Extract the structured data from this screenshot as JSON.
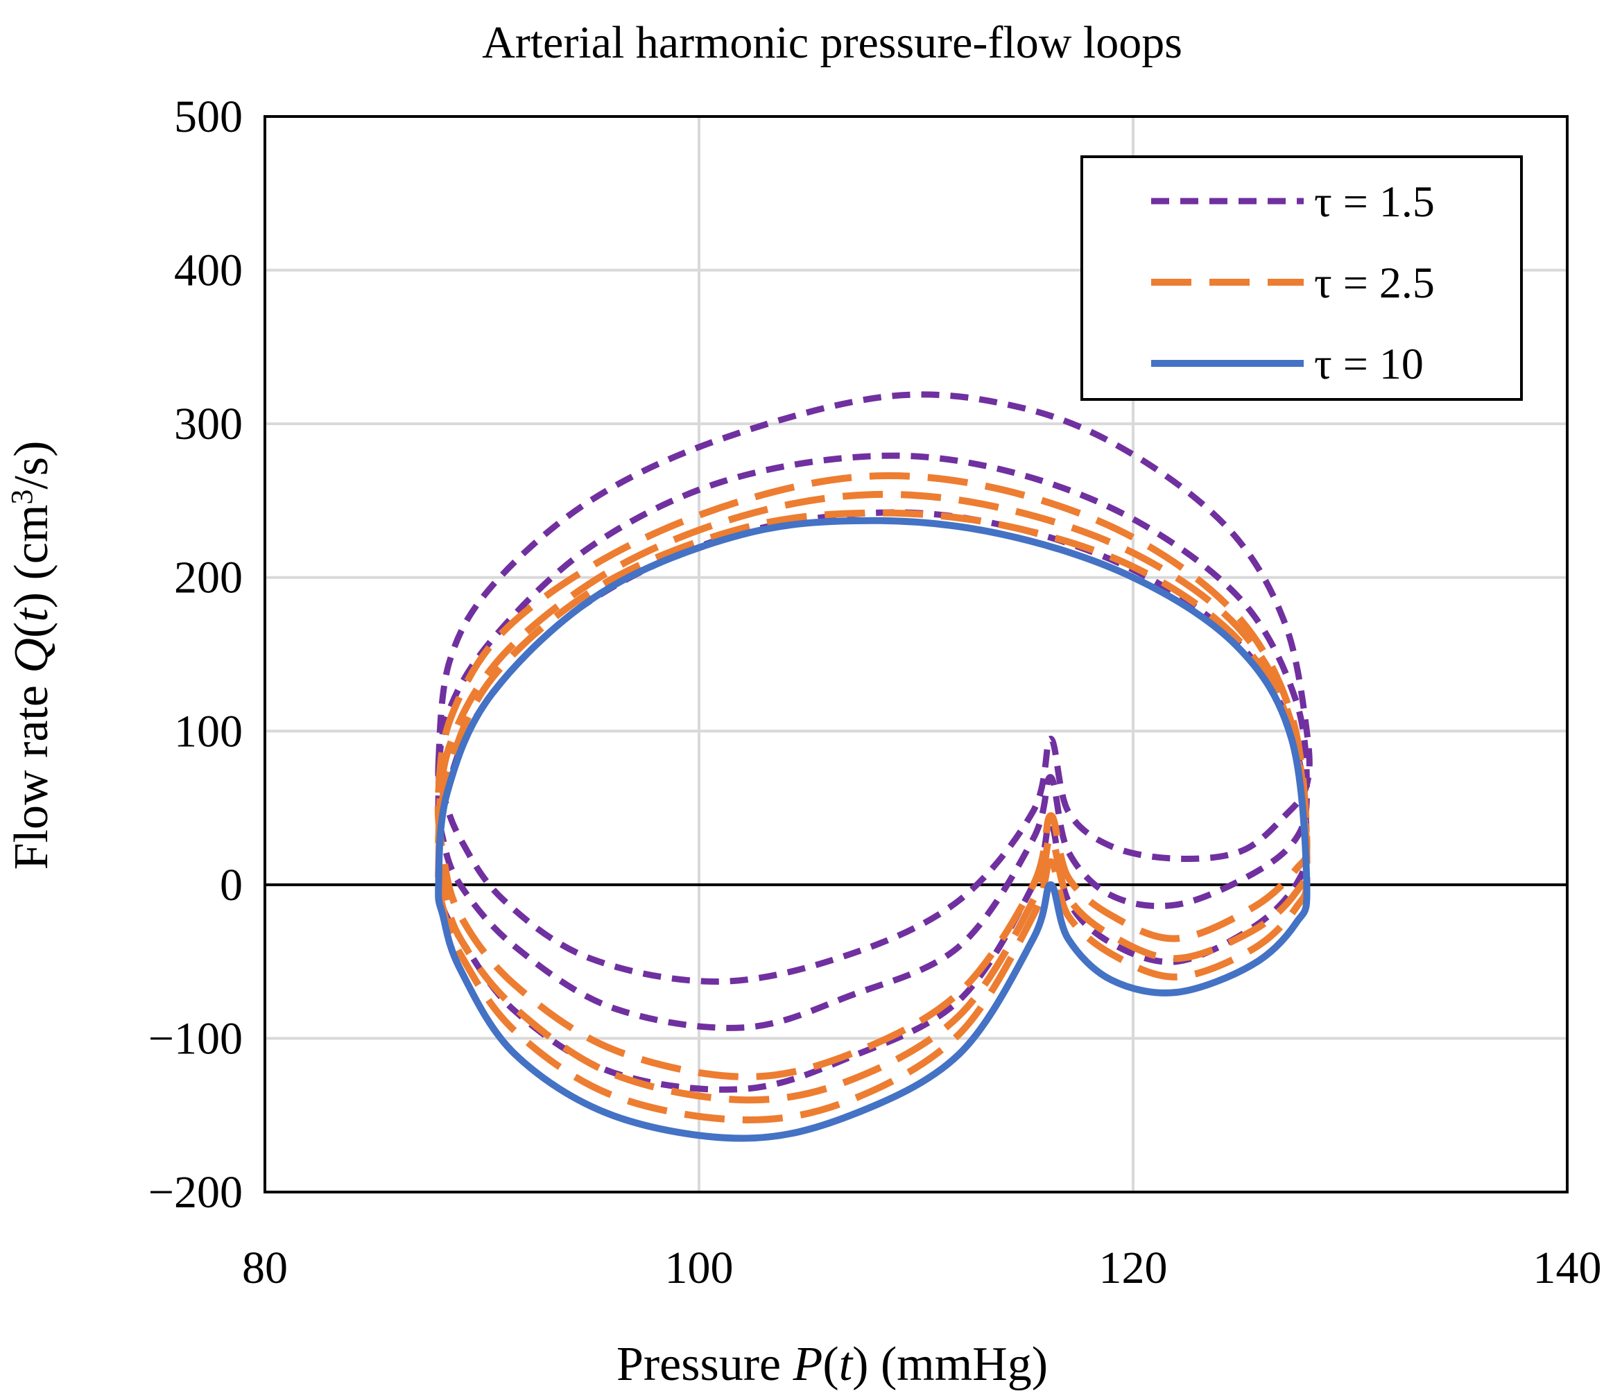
{
  "chart_data": {
    "type": "line",
    "title": "Arterial harmonic pressure-flow loops",
    "xlabel": "Pressure P(t) (mmHg)",
    "ylabel": "Flow rate Q(t) (cm³/s)",
    "xlabel_parts": {
      "pre": "Pressure ",
      "var": "P",
      "open": "(",
      "arg": "t",
      "post": ") (mmHg)"
    },
    "ylabel_parts": {
      "pre": "Flow rate ",
      "var": "Q",
      "open": "(",
      "arg": "t",
      "post": ") (cm",
      "sup": "3",
      "tail": "/s)"
    },
    "xlim": [
      80,
      140
    ],
    "ylim": [
      -200,
      500
    ],
    "xticks": [
      80,
      100,
      120,
      140
    ],
    "yticks": [
      500,
      400,
      300,
      200,
      100,
      0,
      -100,
      -200
    ],
    "ytick_labels": [
      "500",
      "400",
      "300",
      "200",
      "100",
      "0",
      "−100",
      "−200"
    ],
    "grid": true,
    "legend_position": "top-right",
    "legend": [
      "τ = 1.5",
      "τ = 2.5",
      "τ = 10"
    ],
    "series": [
      {
        "name": "τ = 1.5",
        "color": "#7030a0",
        "style": "short-dash",
        "loops": [
          [
            [
              88,
              80
            ],
            [
              88.5,
              145
            ],
            [
              90.5,
              195
            ],
            [
              95,
              250
            ],
            [
              101,
              290
            ],
            [
              108.8,
              318
            ],
            [
              115,
              310
            ],
            [
              120,
              280
            ],
            [
              124.5,
              230
            ],
            [
              127,
              170
            ],
            [
              128,
              100
            ],
            [
              128,
              65
            ],
            [
              127,
              45
            ],
            [
              125,
              22
            ],
            [
              122,
              17
            ],
            [
              119,
              25
            ],
            [
              117,
              48
            ],
            [
              116.2,
              95
            ],
            [
              115.4,
              48
            ],
            [
              112,
              -10
            ],
            [
              107,
              -45
            ],
            [
              101,
              -63
            ],
            [
              95,
              -48
            ],
            [
              91,
              -10
            ],
            [
              89,
              30
            ],
            [
              88.2,
              60
            ],
            [
              88,
              80
            ]
          ],
          [
            [
              88,
              60
            ],
            [
              88.4,
              110
            ],
            [
              90.5,
              160
            ],
            [
              95,
              220
            ],
            [
              101,
              262
            ],
            [
              108,
              279
            ],
            [
              114,
              270
            ],
            [
              120,
              238
            ],
            [
              125,
              185
            ],
            [
              127.5,
              120
            ],
            [
              128,
              60
            ],
            [
              127.5,
              30
            ],
            [
              125.5,
              7
            ],
            [
              122,
              -13
            ],
            [
              119,
              -7
            ],
            [
              117,
              22
            ],
            [
              116.2,
              70
            ],
            [
              115.4,
              30
            ],
            [
              112,
              -40
            ],
            [
              107,
              -72
            ],
            [
              102,
              -93
            ],
            [
              96,
              -80
            ],
            [
              91.5,
              -40
            ],
            [
              89,
              0
            ],
            [
              88.2,
              30
            ],
            [
              88,
              60
            ]
          ],
          [
            [
              88,
              0
            ],
            [
              88.3,
              55
            ],
            [
              90,
              115
            ],
            [
              94.5,
              180
            ],
            [
              101,
              225
            ],
            [
              108,
              242
            ],
            [
              114,
              234
            ],
            [
              120,
              205
            ],
            [
              124.8,
              158
            ],
            [
              127.3,
              100
            ],
            [
              128,
              30
            ],
            [
              127.5,
              0
            ],
            [
              125.5,
              -28
            ],
            [
              122,
              -50
            ],
            [
              119,
              -38
            ],
            [
              117,
              -10
            ],
            [
              116.2,
              40
            ],
            [
              115.4,
              0
            ],
            [
              112,
              -75
            ],
            [
              107,
              -112
            ],
            [
              102,
              -133
            ],
            [
              96,
              -122
            ],
            [
              91.5,
              -82
            ],
            [
              89,
              -35
            ],
            [
              88.2,
              -15
            ],
            [
              88,
              0
            ]
          ]
        ]
      },
      {
        "name": "τ = 2.5",
        "color": "#ed7d31",
        "style": "long-dash",
        "loops": [
          [
            [
              88,
              60
            ],
            [
              88.6,
              110
            ],
            [
              91,
              165
            ],
            [
              96,
              215
            ],
            [
              102,
              250
            ],
            [
              108,
              266
            ],
            [
              114,
              257
            ],
            [
              120,
              226
            ],
            [
              124.8,
              175
            ],
            [
              127.3,
              110
            ],
            [
              128,
              30
            ],
            [
              127.5,
              10
            ],
            [
              125.5,
              -15
            ],
            [
              122,
              -35
            ],
            [
              119,
              -20
            ],
            [
              117,
              5
            ],
            [
              116.2,
              45
            ],
            [
              115.4,
              0
            ],
            [
              112,
              -70
            ],
            [
              107,
              -110
            ],
            [
              102,
              -125
            ],
            [
              96,
              -107
            ],
            [
              91.5,
              -65
            ],
            [
              89,
              -20
            ],
            [
              88.2,
              20
            ],
            [
              88,
              60
            ]
          ],
          [
            [
              88,
              30
            ],
            [
              88.5,
              90
            ],
            [
              91,
              150
            ],
            [
              96,
              205
            ],
            [
              102,
              240
            ],
            [
              108,
              254
            ],
            [
              114,
              245
            ],
            [
              120,
              216
            ],
            [
              124.8,
              168
            ],
            [
              127.3,
              105
            ],
            [
              128,
              20
            ],
            [
              127.5,
              -5
            ],
            [
              125.5,
              -30
            ],
            [
              122,
              -48
            ],
            [
              119,
              -33
            ],
            [
              117,
              -8
            ],
            [
              116.2,
              30
            ],
            [
              115.4,
              -10
            ],
            [
              112,
              -85
            ],
            [
              107,
              -127
            ],
            [
              102,
              -140
            ],
            [
              96,
              -123
            ],
            [
              91.5,
              -80
            ],
            [
              89,
              -35
            ],
            [
              88.2,
              0
            ],
            [
              88,
              30
            ]
          ],
          [
            [
              88,
              10
            ],
            [
              88.4,
              70
            ],
            [
              90.5,
              135
            ],
            [
              95.5,
              195
            ],
            [
              102,
              232
            ],
            [
              108,
              242
            ],
            [
              114,
              234
            ],
            [
              120,
              207
            ],
            [
              124.8,
              160
            ],
            [
              127.3,
              100
            ],
            [
              128,
              10
            ],
            [
              127.5,
              -15
            ],
            [
              125.5,
              -42
            ],
            [
              122,
              -60
            ],
            [
              119,
              -45
            ],
            [
              117,
              -20
            ],
            [
              116.2,
              15
            ],
            [
              115.4,
              -20
            ],
            [
              112,
              -97
            ],
            [
              107,
              -140
            ],
            [
              102,
              -153
            ],
            [
              96,
              -137
            ],
            [
              91.5,
              -95
            ],
            [
              89,
              -45
            ],
            [
              88.2,
              -15
            ],
            [
              88,
              10
            ]
          ]
        ]
      },
      {
        "name": "τ = 10",
        "color": "#4472c4",
        "style": "solid",
        "loops": [
          [
            [
              88,
              0
            ],
            [
              88.4,
              60
            ],
            [
              90.5,
              125
            ],
            [
              95.5,
              190
            ],
            [
              102,
              228
            ],
            [
              108,
              237
            ],
            [
              114,
              228
            ],
            [
              120,
              200
            ],
            [
              124.8,
              155
            ],
            [
              127.3,
              95
            ],
            [
              128,
              0
            ],
            [
              127.5,
              -25
            ],
            [
              125.5,
              -52
            ],
            [
              122,
              -70
            ],
            [
              119,
              -62
            ],
            [
              117,
              -35
            ],
            [
              116.2,
              0
            ],
            [
              115.4,
              -35
            ],
            [
              112,
              -110
            ],
            [
              107,
              -150
            ],
            [
              102,
              -165
            ],
            [
              96,
              -150
            ],
            [
              91.5,
              -110
            ],
            [
              89,
              -55
            ],
            [
              88.2,
              -20
            ],
            [
              88,
              0
            ]
          ]
        ]
      }
    ]
  }
}
